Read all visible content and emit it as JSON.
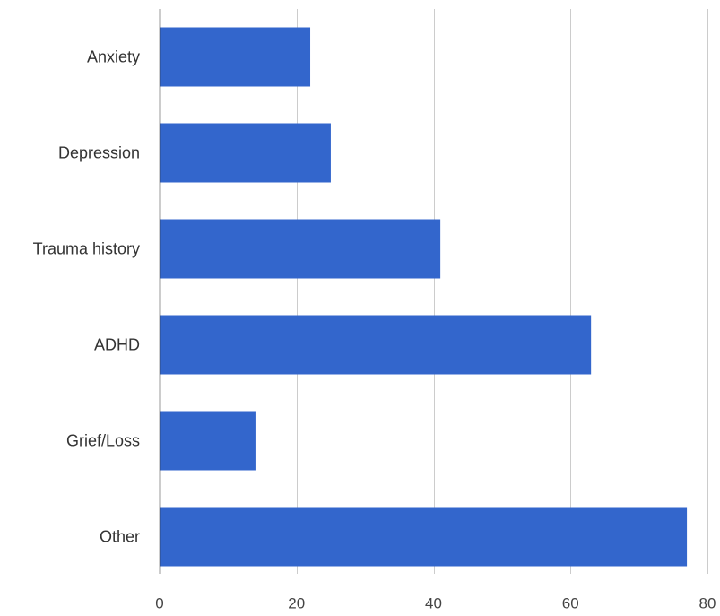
{
  "chart_data": {
    "type": "bar",
    "orientation": "horizontal",
    "categories": [
      "Anxiety",
      "Depression",
      "Trauma history",
      "ADHD",
      "Grief/Loss",
      "Other"
    ],
    "values": [
      22,
      25,
      41,
      63,
      14,
      77
    ],
    "xlim": [
      0,
      80
    ],
    "xticks": [
      0,
      20,
      40,
      60,
      80
    ],
    "xtick_labels": [
      "0",
      "20",
      "40",
      "60",
      "80"
    ],
    "title": "",
    "xlabel": "",
    "ylabel": "",
    "grid": true,
    "legend": "none",
    "colors": {
      "bar": "#3366cc",
      "grid": "#cccccc",
      "axis": "#333333"
    }
  }
}
